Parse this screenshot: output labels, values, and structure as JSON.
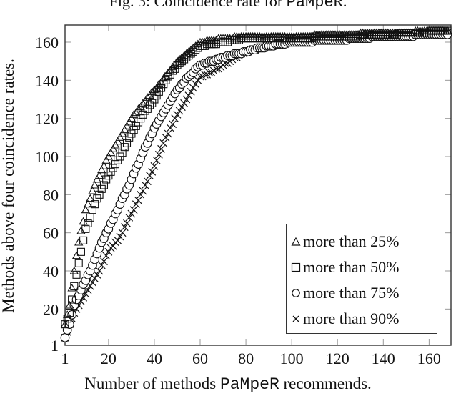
{
  "caption": {
    "prefix": "Fig. 3: Coincidence rate for ",
    "tool": "PaMpeR",
    "suffix": "."
  },
  "chart_data": {
    "type": "scatter",
    "title": "Fig. 3: Coincidence rate for PaMpeR.",
    "xlabel": "Number of methods PaMpeR recommends.",
    "ylabel": "Methods above four coincidence rates.",
    "xlim": [
      1,
      168
    ],
    "ylim": [
      1,
      169
    ],
    "xticks": [
      1,
      20,
      40,
      60,
      80,
      100,
      120,
      140,
      160
    ],
    "yticks": [
      1,
      20,
      40,
      60,
      80,
      100,
      120,
      140,
      160
    ],
    "grid": false,
    "legend_position": "lower right",
    "series": [
      {
        "name": "more than 25%",
        "marker": "triangle",
        "x": [
          1,
          3,
          5,
          7,
          10,
          15,
          20,
          25,
          30,
          35,
          40,
          45,
          50,
          55,
          60,
          70,
          80,
          100,
          120,
          140,
          168
        ],
        "y": [
          12,
          22,
          40,
          55,
          72,
          88,
          100,
          110,
          120,
          128,
          135,
          142,
          150,
          155,
          160,
          162,
          163,
          163,
          164,
          165,
          166
        ]
      },
      {
        "name": "more than 50%",
        "marker": "square",
        "x": [
          1,
          3,
          5,
          8,
          10,
          15,
          20,
          25,
          30,
          35,
          40,
          45,
          50,
          55,
          60,
          70,
          80,
          100,
          120,
          140,
          168
        ],
        "y": [
          12,
          18,
          32,
          50,
          62,
          78,
          90,
          100,
          112,
          122,
          130,
          140,
          148,
          153,
          158,
          160,
          162,
          162,
          163,
          164,
          166
        ]
      },
      {
        "name": "more than 75%",
        "marker": "circle",
        "x": [
          1,
          3,
          5,
          8,
          12,
          16,
          20,
          25,
          30,
          35,
          40,
          45,
          50,
          55,
          60,
          65,
          70,
          80,
          90,
          100,
          120,
          140,
          168
        ],
        "y": [
          5,
          12,
          22,
          30,
          40,
          52,
          62,
          75,
          88,
          102,
          115,
          125,
          135,
          142,
          148,
          150,
          152,
          155,
          158,
          160,
          161,
          163,
          164
        ]
      },
      {
        "name": "more than 90%",
        "marker": "cross",
        "x": [
          1,
          5,
          10,
          15,
          20,
          25,
          30,
          35,
          40,
          45,
          50,
          55,
          60,
          65,
          70,
          80,
          90,
          100,
          120,
          140,
          168
        ],
        "y": [
          5,
          18,
          28,
          38,
          50,
          58,
          70,
          82,
          95,
          110,
          122,
          132,
          142,
          144,
          148,
          155,
          158,
          160,
          162,
          164,
          165
        ]
      }
    ]
  },
  "legend": {
    "items": [
      {
        "label": "more than 25%"
      },
      {
        "label": "more than 50%"
      },
      {
        "label": "more than 75%"
      },
      {
        "label": "more than 90%"
      }
    ]
  },
  "axes": {
    "xlabel_prefix": "Number of methods ",
    "xlabel_tool": "PaMpeR",
    "xlabel_suffix": " recommends.",
    "ylabel": "Methods above four coincidence rates."
  }
}
